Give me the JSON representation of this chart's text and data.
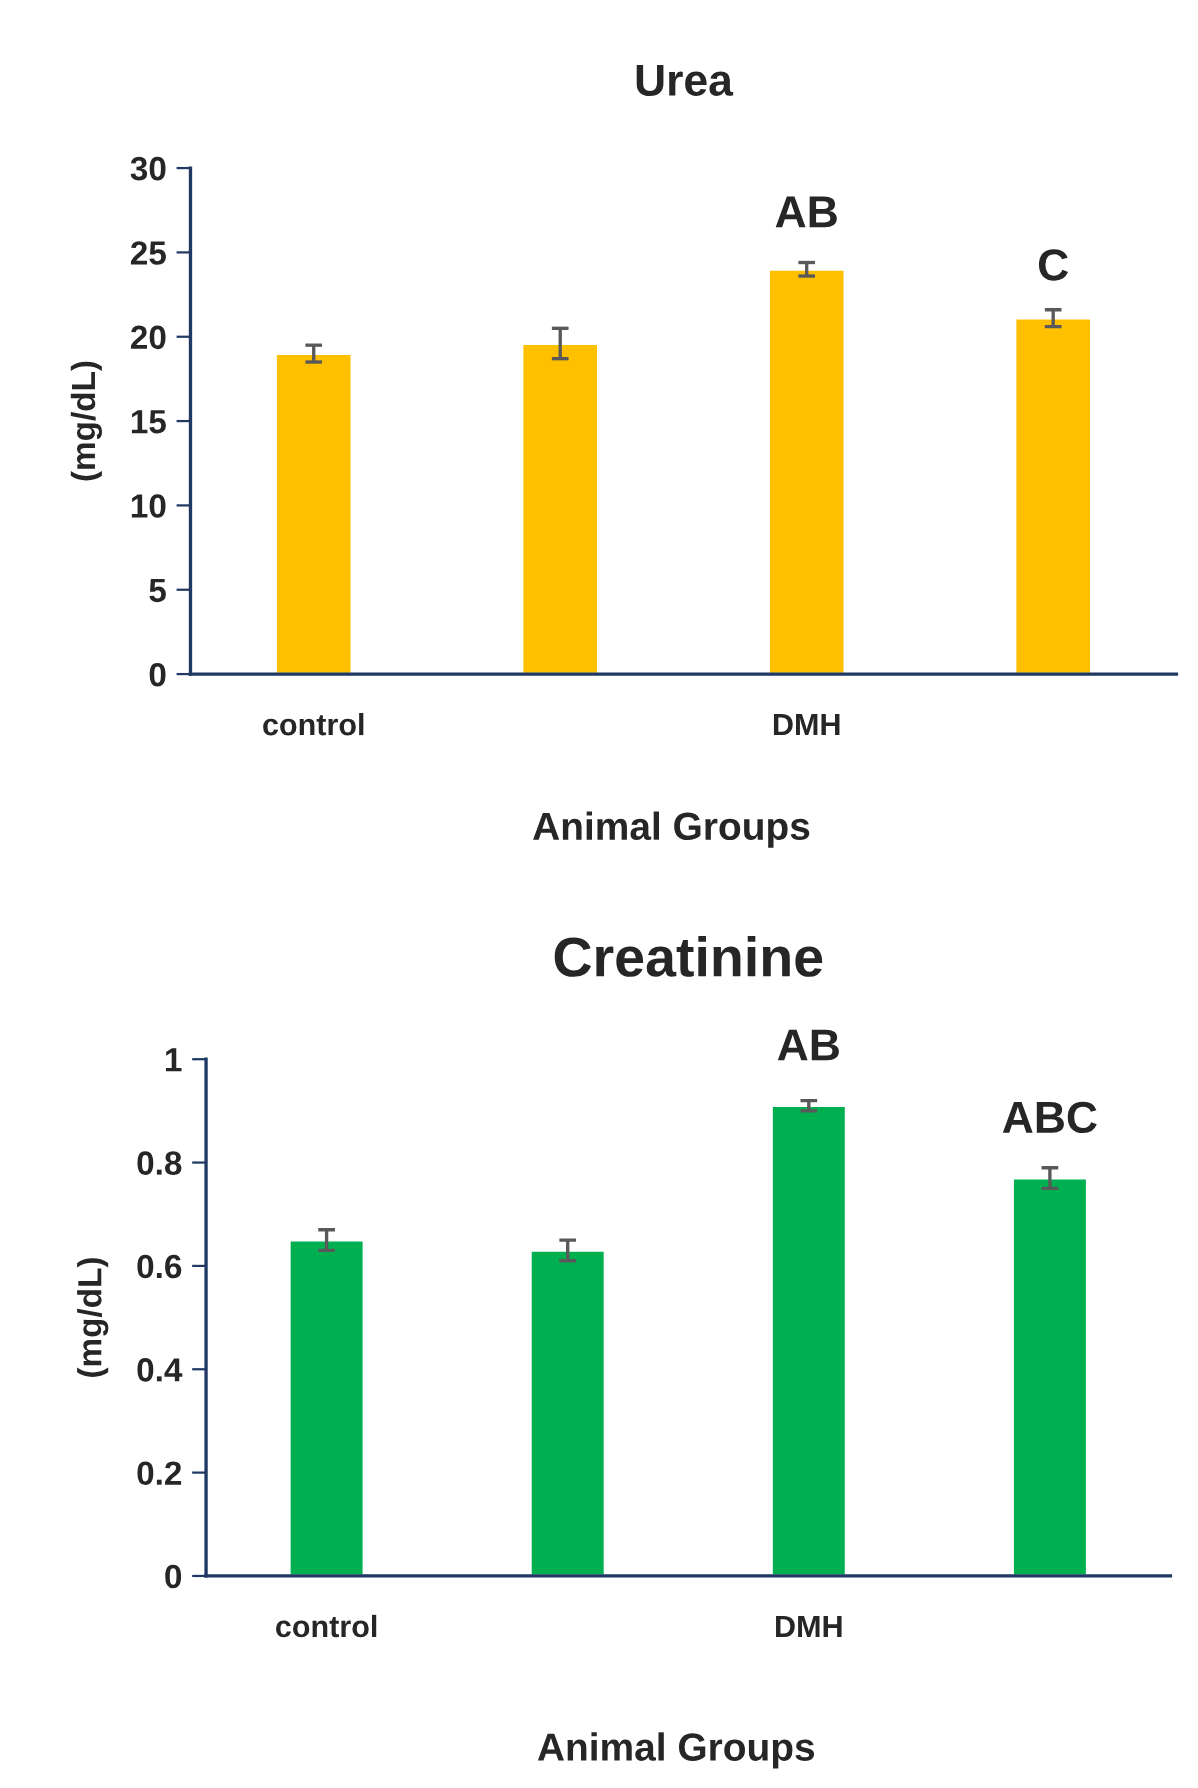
{
  "chart_data": [
    {
      "type": "bar",
      "title": "Urea",
      "xlabel": "Animal Groups",
      "ylabel": "(mg/dL)",
      "categories": [
        "control",
        null,
        "DMH",
        null
      ],
      "values": [
        19.0,
        19.6,
        24.0,
        21.1
      ],
      "errors": [
        0.5,
        0.9,
        0.4,
        0.5
      ],
      "color": "#ffc000",
      "ylim": [
        0,
        30
      ],
      "yticks": [
        0,
        5,
        10,
        15,
        20,
        25,
        30
      ],
      "grid": false,
      "legend": false,
      "annotations": [
        "AB",
        "C"
      ]
    },
    {
      "type": "bar",
      "title": "Creatinine",
      "xlabel": "Animal Groups",
      "ylabel": "(mg/dL)",
      "categories": [
        "control",
        null,
        "DMH",
        null
      ],
      "values": [
        0.65,
        0.63,
        0.91,
        0.77
      ],
      "errors": [
        0.02,
        0.02,
        0.01,
        0.02
      ],
      "color": "#00b050",
      "ylim": [
        0,
        1
      ],
      "yticks": [
        0,
        0.2,
        0.4,
        0.6,
        0.8,
        1
      ],
      "grid": false,
      "legend": false,
      "annotations": [
        "AB",
        "ABC"
      ]
    }
  ]
}
